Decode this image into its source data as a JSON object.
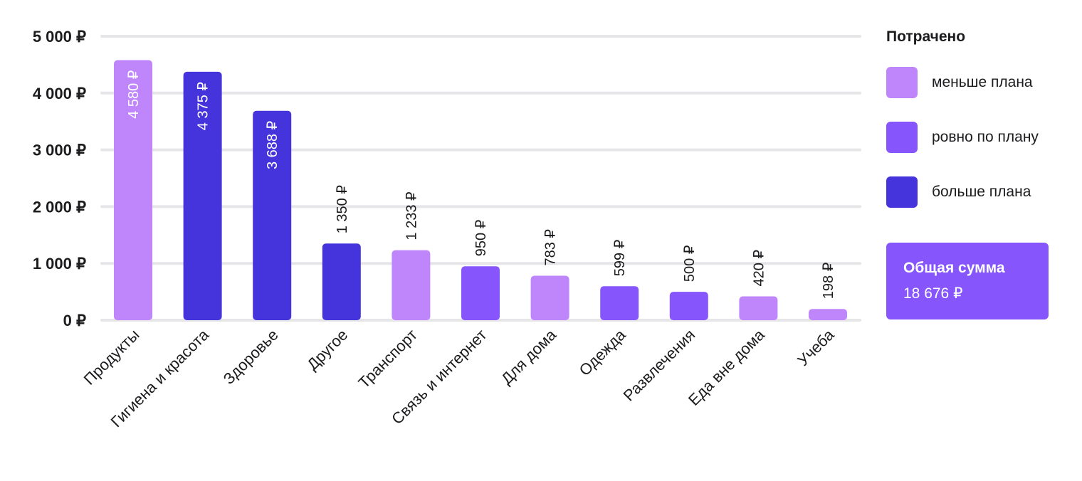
{
  "colors": {
    "under": "#bf86fc",
    "on_plan": "#8656fc",
    "over": "#4533db",
    "grid": "#e6e6e9",
    "text": "#1c1c1f"
  },
  "chart_data": {
    "type": "bar",
    "ylim": [
      0,
      5000
    ],
    "yticks": [
      0,
      1000,
      2000,
      3000,
      4000,
      5000
    ],
    "ytick_labels": [
      "0 ₽",
      "1 000 ₽",
      "2 000 ₽",
      "3 000 ₽",
      "4 000 ₽",
      "5 000 ₽"
    ],
    "grid": true,
    "legend_position": "right",
    "categories": [
      "Продукты",
      "Гигиена и красота",
      "Здоровье",
      "Другое",
      "Транспорт",
      "Связь и интернет",
      "Для дома",
      "Одежда",
      "Развлечения",
      "Еда вне дома",
      "Учеба"
    ],
    "values": [
      4580,
      4375,
      3688,
      1350,
      1233,
      950,
      783,
      599,
      500,
      420,
      198
    ],
    "value_labels": [
      "4 580 ₽",
      "4 375 ₽",
      "3 688 ₽",
      "1 350 ₽",
      "1 233 ₽",
      "950 ₽",
      "783 ₽",
      "599 ₽",
      "500 ₽",
      "420 ₽",
      "198 ₽"
    ],
    "status": [
      "under",
      "over",
      "over",
      "over",
      "under",
      "on_plan",
      "under",
      "on_plan",
      "on_plan",
      "under",
      "under"
    ]
  },
  "legend": {
    "title": "Потрачено",
    "items": [
      {
        "key": "under",
        "label": "меньше плана"
      },
      {
        "key": "on_plan",
        "label": "ровно по плану"
      },
      {
        "key": "over",
        "label": "больше плана"
      }
    ]
  },
  "total": {
    "label": "Общая сумма",
    "value": "18 676 ₽"
  }
}
